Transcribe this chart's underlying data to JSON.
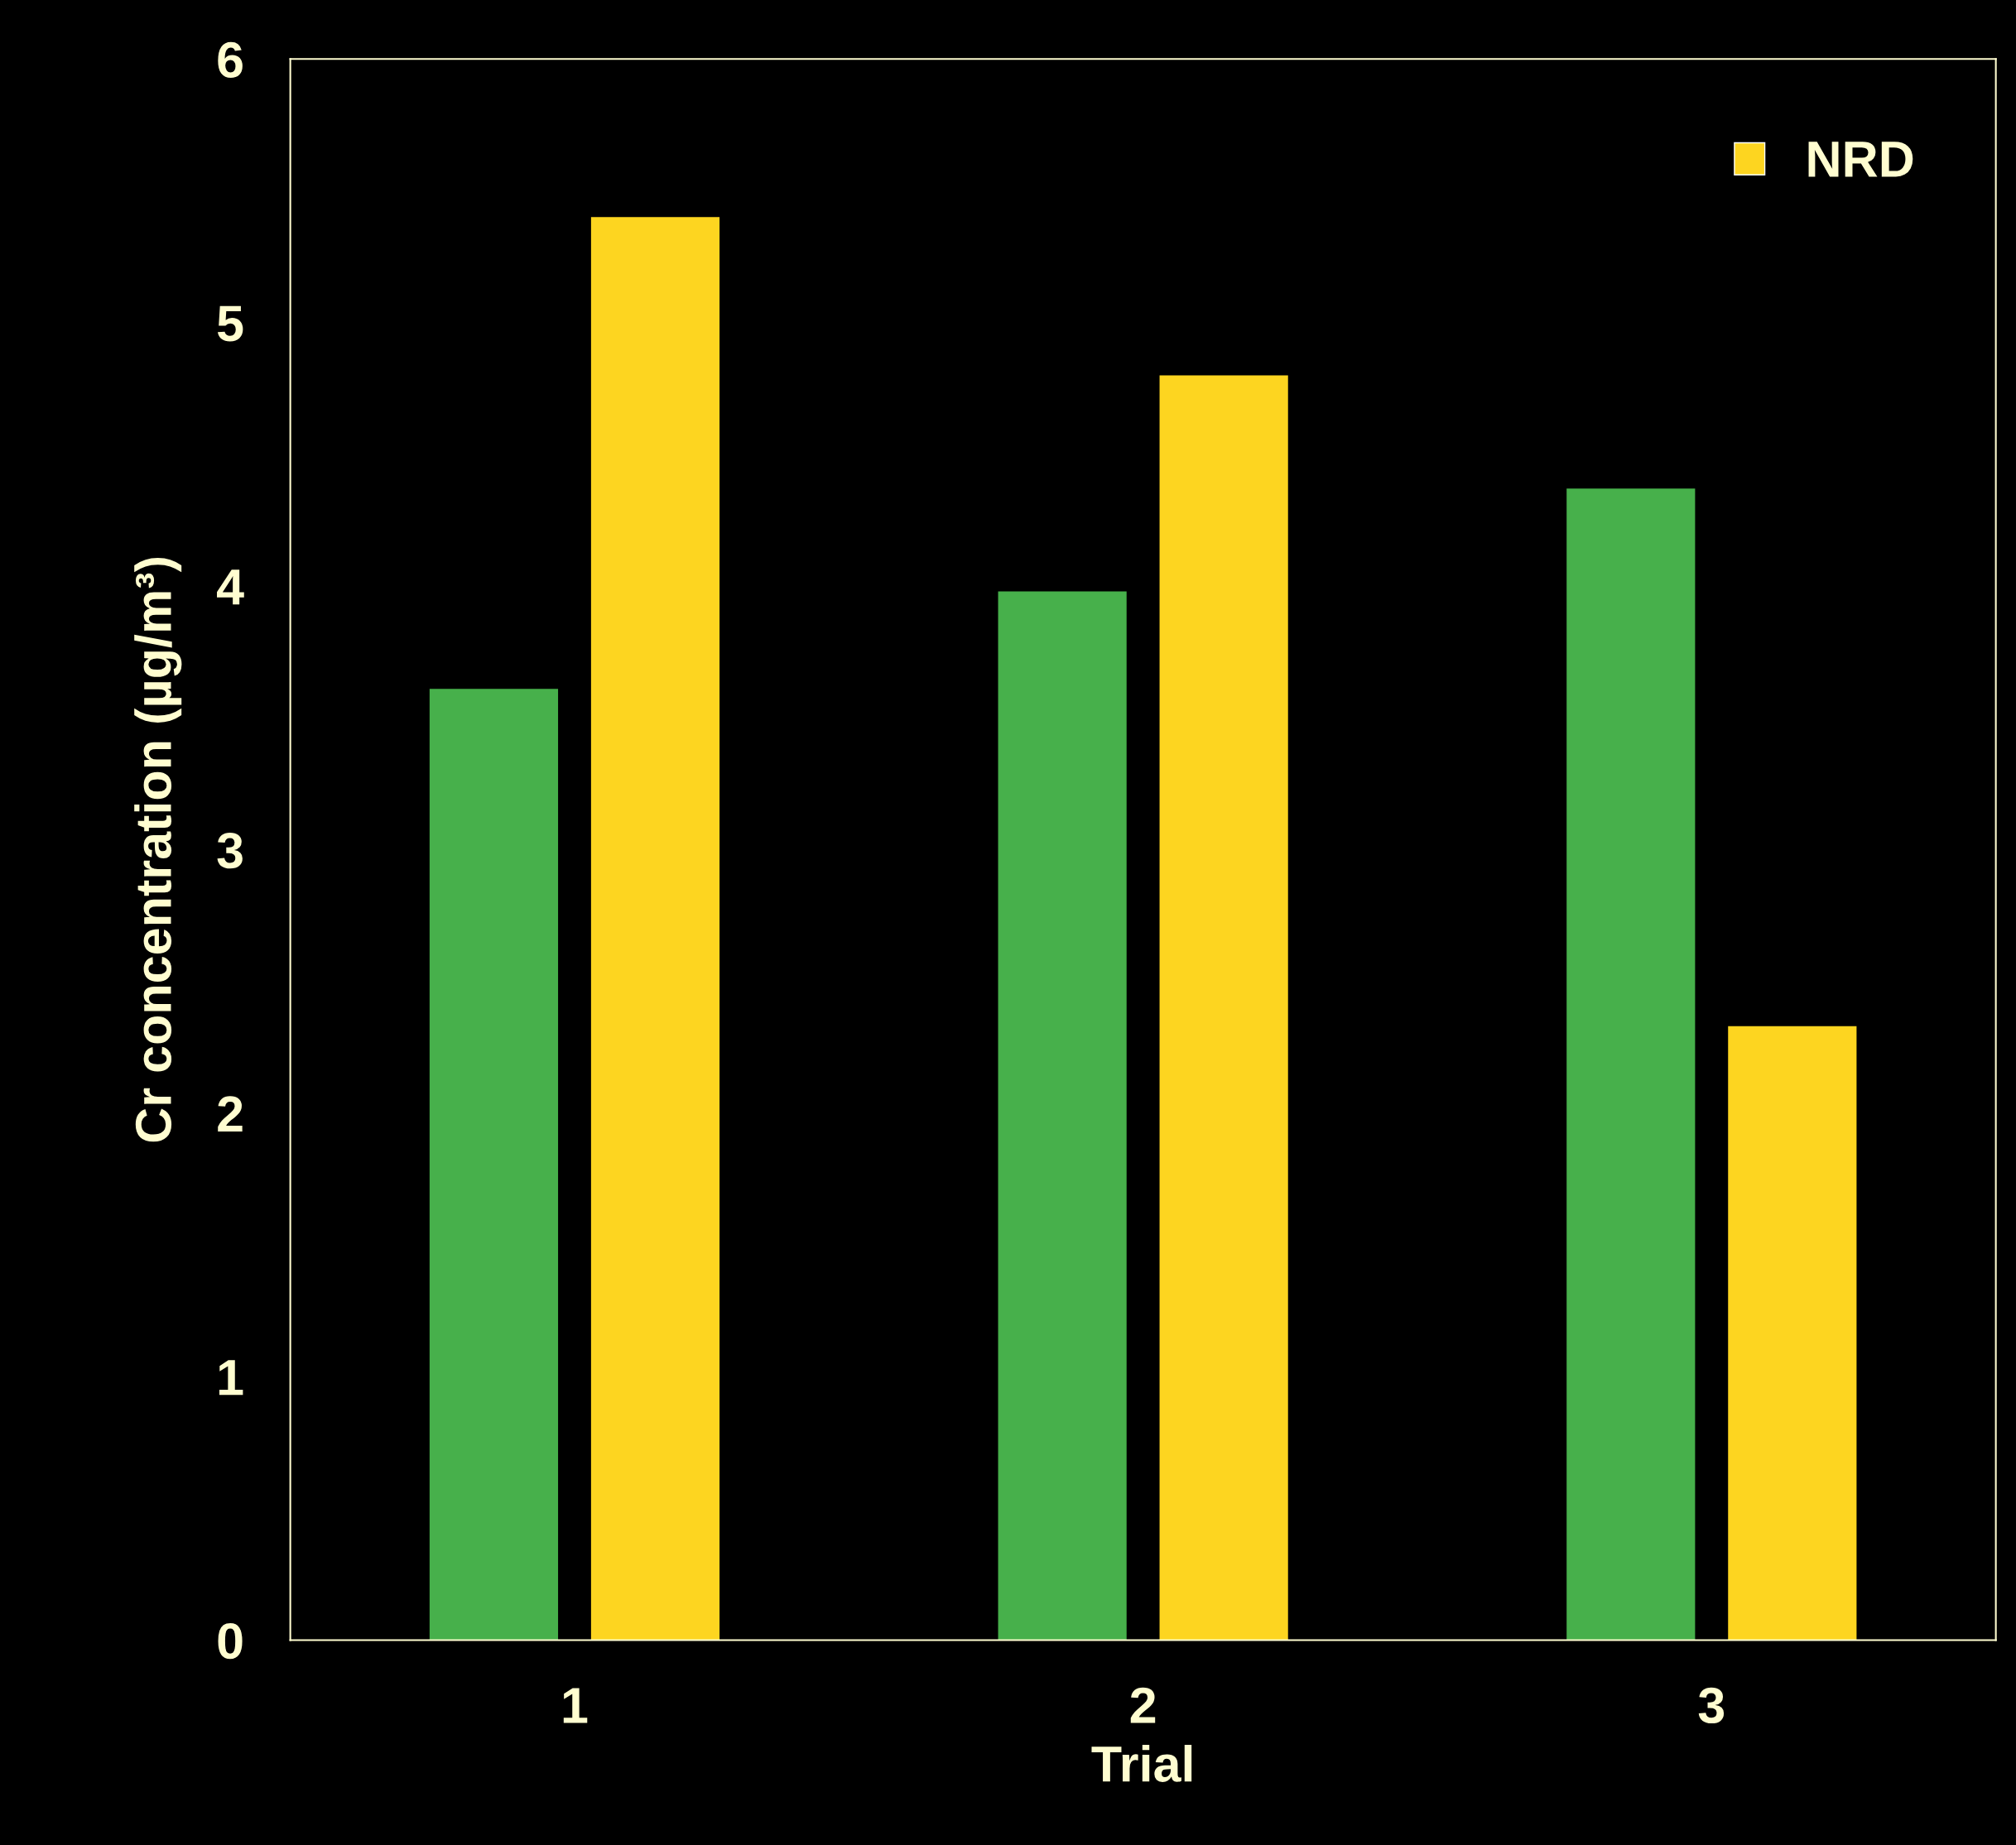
{
  "chart_data": {
    "type": "bar",
    "xlabel": "Trial",
    "ylabel": "Cr concentration (µg/m³)",
    "categories": [
      "1",
      "2",
      "3"
    ],
    "series": [
      {
        "color": "#47b04b",
        "values": [
          3.61,
          3.98,
          4.37
        ]
      },
      {
        "name": "NRD",
        "color": "#fdd520",
        "values": [
          5.4,
          4.8,
          2.33
        ]
      }
    ],
    "ylim": [
      0,
      6
    ],
    "yticks": [
      0,
      1,
      2,
      3,
      4,
      5,
      6
    ],
    "grid": false,
    "legend": "top right"
  }
}
